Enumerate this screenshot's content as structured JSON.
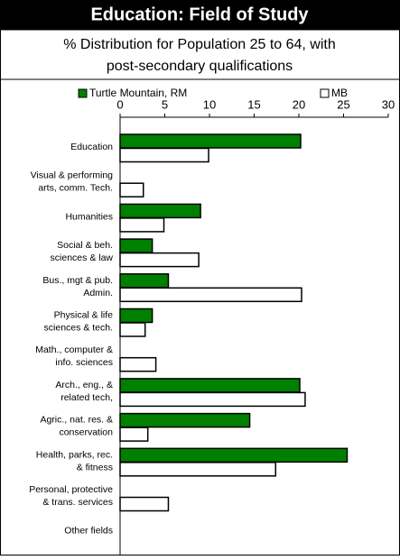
{
  "chart_data": {
    "type": "hbar",
    "title": "Education: Field of Study",
    "subtitle": [
      "% Distribution for Population 25 to 64, with",
      "post-secondary qualifications"
    ],
    "categories": [
      [
        "Education"
      ],
      [
        "Visual & performing",
        "arts, comm. Tech."
      ],
      [
        "Humanities"
      ],
      [
        "Social & beh.",
        "sciences & law"
      ],
      [
        "Bus., mgt & pub.",
        "Admin."
      ],
      [
        "Physical & life",
        "sciences & tech."
      ],
      [
        "Math., computer &",
        "info. sciences"
      ],
      [
        "Arch., eng., &",
        "related tech,"
      ],
      [
        "Agric., nat. res. &",
        "conservation"
      ],
      [
        "Health, parks, rec.",
        "& fitness"
      ],
      [
        "Personal, protective",
        "& trans. services"
      ],
      [
        "Other fields"
      ]
    ],
    "series": [
      {
        "name": "Turtle Mountain, RM",
        "color": "#008000",
        "values": [
          20.2,
          0,
          9.0,
          3.6,
          5.4,
          3.6,
          0,
          20.1,
          14.5,
          25.4,
          0,
          0
        ]
      },
      {
        "name": "MB",
        "color": "#ffffff",
        "values": [
          9.9,
          2.6,
          4.9,
          8.8,
          20.3,
          2.8,
          4.0,
          20.7,
          3.1,
          17.4,
          5.4,
          0
        ]
      }
    ],
    "xlim": [
      0,
      30
    ],
    "xticks": [
      0,
      5,
      10,
      15,
      20,
      25,
      30
    ]
  }
}
